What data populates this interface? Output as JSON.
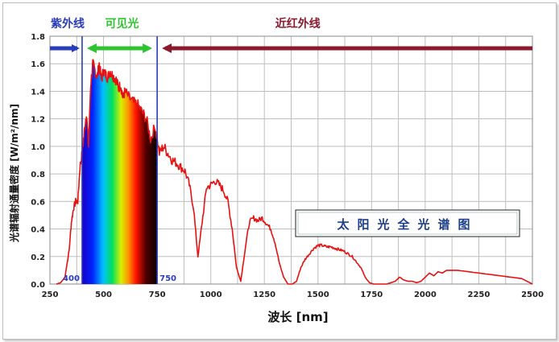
{
  "chart_data": {
    "type": "line",
    "title": "太阳光全光谱图",
    "xlabel": "波长 [nm]",
    "ylabel": "光谱辐射通量密度 [W/m²/nm]",
    "xlim": [
      250,
      2500
    ],
    "ylim": [
      0,
      1.8
    ],
    "x_ticks": [
      250,
      500,
      750,
      1000,
      1250,
      1500,
      1750,
      2000,
      2250,
      2500
    ],
    "y_ticks": [
      0.0,
      0.2,
      0.4,
      0.6,
      0.8,
      1.0,
      1.2,
      1.4,
      1.6,
      1.8
    ],
    "grid": true,
    "regions": [
      {
        "label": "紫外线",
        "from": 250,
        "to": 400,
        "color": "#2a3db8"
      },
      {
        "label": "可见光",
        "from": 400,
        "to": 750,
        "color": "#2fc42f"
      },
      {
        "label": "近红外线",
        "from": 750,
        "to": 2500,
        "color": "#8c1a2c"
      }
    ],
    "boundary_labels": [
      {
        "x": 400,
        "text": "400"
      },
      {
        "x": 750,
        "text": "750"
      }
    ],
    "series": [
      {
        "color": "#e81010",
        "x": [
          280,
          300,
          320,
          340,
          350,
          360,
          370,
          380,
          390,
          400,
          410,
          420,
          430,
          440,
          450,
          460,
          470,
          480,
          490,
          500,
          510,
          520,
          530,
          540,
          550,
          560,
          570,
          580,
          590,
          600,
          620,
          640,
          660,
          680,
          700,
          720,
          740,
          760,
          780,
          800,
          820,
          840,
          860,
          880,
          900,
          920,
          940,
          960,
          980,
          1000,
          1020,
          1040,
          1060,
          1080,
          1100,
          1120,
          1140,
          1160,
          1180,
          1200,
          1220,
          1240,
          1260,
          1280,
          1300,
          1320,
          1340,
          1360,
          1380,
          1400,
          1420,
          1440,
          1460,
          1480,
          1500,
          1520,
          1540,
          1560,
          1580,
          1600,
          1620,
          1640,
          1660,
          1680,
          1700,
          1720,
          1740,
          1760,
          1780,
          1800,
          1820,
          1840,
          1860,
          1880,
          1900,
          1920,
          1940,
          1960,
          1980,
          2000,
          2020,
          2040,
          2060,
          2080,
          2100,
          2150,
          2200,
          2250,
          2300,
          2350,
          2400,
          2450,
          2500
        ],
        "y": [
          0.0,
          0.01,
          0.05,
          0.25,
          0.45,
          0.55,
          0.6,
          0.6,
          0.85,
          0.95,
          1.1,
          1.25,
          1.0,
          1.45,
          1.6,
          1.55,
          1.5,
          1.6,
          1.48,
          1.55,
          1.52,
          1.5,
          1.55,
          1.52,
          1.5,
          1.48,
          1.42,
          1.45,
          1.35,
          1.4,
          1.35,
          1.32,
          1.3,
          1.25,
          1.2,
          1.05,
          1.15,
          0.95,
          1.0,
          0.95,
          0.9,
          0.88,
          0.85,
          0.82,
          0.72,
          0.55,
          0.2,
          0.45,
          0.7,
          0.72,
          0.75,
          0.72,
          0.68,
          0.6,
          0.4,
          0.12,
          0.02,
          0.25,
          0.45,
          0.48,
          0.46,
          0.48,
          0.44,
          0.4,
          0.3,
          0.15,
          0.05,
          0.0,
          0.0,
          0.02,
          0.12,
          0.18,
          0.22,
          0.26,
          0.28,
          0.28,
          0.27,
          0.27,
          0.26,
          0.25,
          0.24,
          0.22,
          0.2,
          0.16,
          0.12,
          0.05,
          0.01,
          0.0,
          0.0,
          0.0,
          0.0,
          0.01,
          0.02,
          0.05,
          0.03,
          0.02,
          0.02,
          0.01,
          0.02,
          0.05,
          0.08,
          0.06,
          0.09,
          0.08,
          0.1,
          0.1,
          0.09,
          0.08,
          0.07,
          0.06,
          0.05,
          0.04,
          0.0
        ]
      }
    ]
  }
}
